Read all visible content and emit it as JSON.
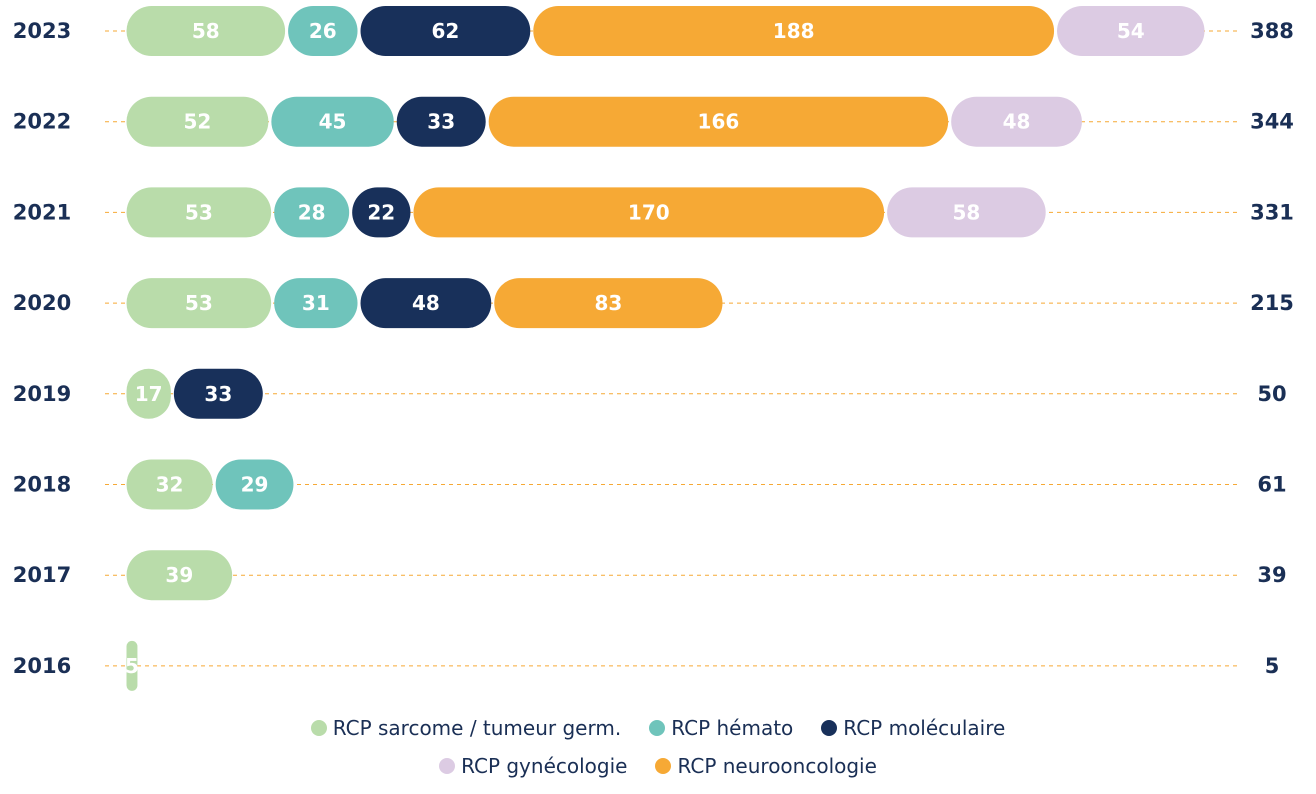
{
  "chart_data": {
    "type": "stacked-bar-horizontal",
    "categories": [
      "2023",
      "2022",
      "2021",
      "2020",
      "2019",
      "2018",
      "2017",
      "2016"
    ],
    "series": [
      {
        "name": "RCP sarcome / tumeur germ.",
        "color": "#b9dcaa",
        "values": [
          58,
          52,
          53,
          53,
          17,
          32,
          39,
          5
        ]
      },
      {
        "name": "RCP hémato",
        "color": "#6fc4bb",
        "values": [
          26,
          45,
          28,
          31,
          null,
          29,
          null,
          null
        ]
      },
      {
        "name": "RCP moléculaire",
        "color": "#18305a",
        "values": [
          62,
          33,
          22,
          48,
          33,
          null,
          null,
          null
        ]
      },
      {
        "name": "RCP neurooncologie",
        "color": "#f6a935",
        "values": [
          188,
          166,
          170,
          83,
          null,
          null,
          null,
          null
        ]
      },
      {
        "name": "RCP gynécologie",
        "color": "#dccbe3",
        "values": [
          54,
          48,
          58,
          null,
          null,
          null,
          null,
          null
        ]
      }
    ],
    "totals": [
      388,
      344,
      331,
      215,
      50,
      61,
      39,
      5
    ]
  }
}
